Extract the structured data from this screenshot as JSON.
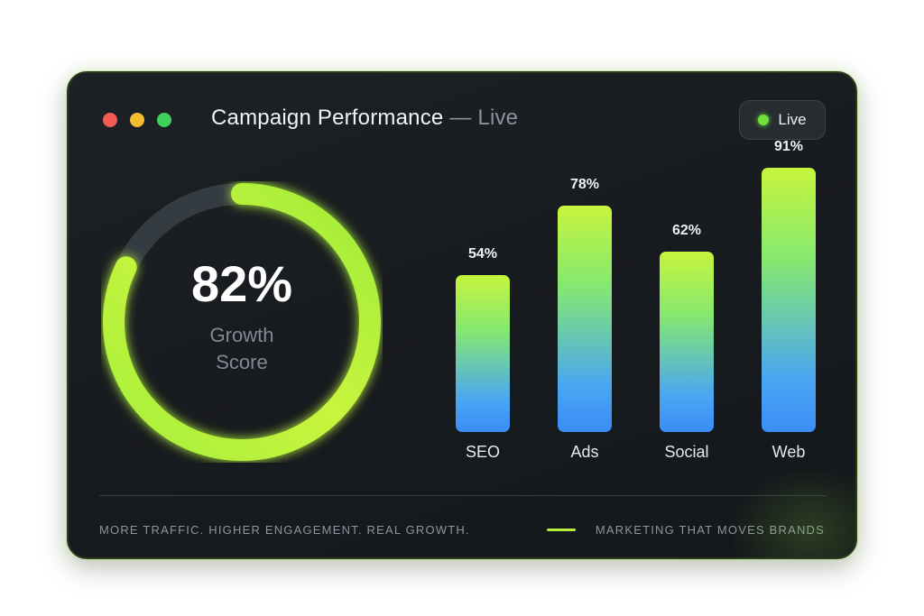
{
  "window": {
    "title": "Campaign Performance",
    "title_separator": "—",
    "title_status": "Live",
    "controls": [
      {
        "name": "close",
        "color": "#f25a52"
      },
      {
        "name": "minimize",
        "color": "#f5bd2f"
      },
      {
        "name": "maximize",
        "color": "#3fd25a"
      }
    ]
  },
  "live_badge": {
    "label": "Live",
    "dot_color": "#6fe13a"
  },
  "growth": {
    "value_text": "82%",
    "value": 82,
    "label": "Growth Score"
  },
  "chart_data": {
    "type": "bar",
    "categories": [
      "SEO",
      "Ads",
      "Social",
      "Web"
    ],
    "values": [
      54,
      78,
      62,
      91
    ],
    "value_labels": [
      "54%",
      "78%",
      "62%",
      "91%"
    ],
    "ylim": [
      0,
      100
    ]
  },
  "footer": {
    "tagline": "MORE TRAFFIC. HIGHER ENGAGEMENT. REAL GROWTH.",
    "slogan": "MARKETING THAT MOVES BRANDS"
  },
  "colors": {
    "accent": "#b5f03c",
    "track": "#3a4247",
    "bar_top": "#c6f53c",
    "bar_bottom": "#3a8df6"
  }
}
